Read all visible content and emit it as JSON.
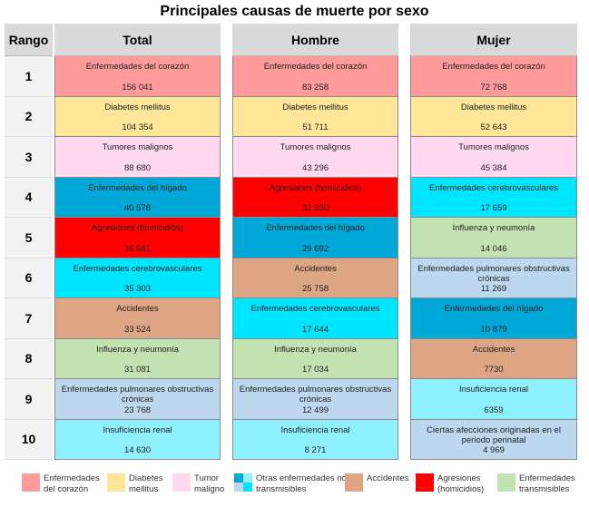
{
  "title": "Principales causas de muerte por sexo",
  "headers": {
    "rank": "Rango",
    "total": "Total",
    "male": "Hombre",
    "female": "Mujer"
  },
  "colors": {
    "corazon": "#ff9b9b",
    "diabetes": "#ffe699",
    "tumor": "#ffd9f0",
    "higado": "#00a8d8",
    "cerebro": "#00e5ff",
    "epoc": "#bdd7ee",
    "renal": "#8ff0ff",
    "accidentes": "#dea584",
    "agresiones": "#ff0000",
    "transmisibles": "#c2e2b2"
  },
  "ranks": [
    "1",
    "2",
    "3",
    "4",
    "5",
    "6",
    "7",
    "8",
    "9",
    "10"
  ],
  "total": [
    {
      "cause": "Enfermedades del corazón",
      "value": "156 041",
      "type": "corazon"
    },
    {
      "cause": "Diabetes mellitus",
      "value": "104 354",
      "type": "diabetes"
    },
    {
      "cause": "Tumores malignos",
      "value": "88 680",
      "type": "tumor"
    },
    {
      "cause": "Enfermedades del hígado",
      "value": "40 578",
      "type": "higado"
    },
    {
      "cause": "Agresiones (homicidios)",
      "value": "36 661",
      "type": "agresiones"
    },
    {
      "cause": "Enfermedades cerebrovasculares",
      "value": "35 303",
      "type": "cerebro"
    },
    {
      "cause": "Accidentes",
      "value": "33 524",
      "type": "accidentes"
    },
    {
      "cause": "Influenza y neumonía",
      "value": "31 081",
      "type": "transmisibles"
    },
    {
      "cause": "Enfermedades pulmonares obstructivas crónicas",
      "value": "23 768",
      "type": "epoc"
    },
    {
      "cause": "Insuficiencia renal",
      "value": "14 630",
      "type": "renal"
    }
  ],
  "male": [
    {
      "cause": "Enfermedades del corazón",
      "value": "83 258",
      "type": "corazon"
    },
    {
      "cause": "Diabetes mellitus",
      "value": "51 711",
      "type": "diabetes"
    },
    {
      "cause": "Tumores malignos",
      "value": "43 296",
      "type": "tumor"
    },
    {
      "cause": "Agresiones (homicidios)",
      "value": "32 530",
      "type": "agresiones"
    },
    {
      "cause": "Enfermedades del hígado",
      "value": "29 692",
      "type": "higado"
    },
    {
      "cause": "Accidentes",
      "value": "25 758",
      "type": "accidentes"
    },
    {
      "cause": "Enfermedades cerebrovasculares",
      "value": "17 644",
      "type": "cerebro"
    },
    {
      "cause": "Influenza y neumonía",
      "value": "17 034",
      "type": "transmisibles"
    },
    {
      "cause": "Enfermedades pulmonares obstructivas crónicas",
      "value": "12 499",
      "type": "epoc"
    },
    {
      "cause": "Insuficiencia renal",
      "value": "8 271",
      "type": "renal"
    }
  ],
  "female": [
    {
      "cause": "Enfermedades del corazón",
      "value": "72 768",
      "type": "corazon"
    },
    {
      "cause": "Diabetes mellitus",
      "value": "52 643",
      "type": "diabetes"
    },
    {
      "cause": "Tumores malignos",
      "value": "45 384",
      "type": "tumor"
    },
    {
      "cause": "Enfermedades cerebrovasculares",
      "value": "17 659",
      "type": "cerebro"
    },
    {
      "cause": "Influenza y neumonía",
      "value": "14 046",
      "type": "transmisibles"
    },
    {
      "cause": "Enfermedades pulmonares obstructivas crónicas",
      "value": "11 269",
      "type": "epoc"
    },
    {
      "cause": "Enfermedades del hígado",
      "value": "10 879",
      "type": "higado"
    },
    {
      "cause": "Accidentes",
      "value": "7730",
      "type": "accidentes"
    },
    {
      "cause": "Insuficiencia renal",
      "value": "6359",
      "type": "renal"
    },
    {
      "cause": "Ciertas afecciones originadas en el periodo perinatal",
      "value": "4 969",
      "type": "epoc"
    }
  ],
  "legend": [
    {
      "label": "Enfermedades del corazón",
      "type": "corazon"
    },
    {
      "label": "Diabetes mellitus",
      "type": "diabetes"
    },
    {
      "label": "Tumor maligno",
      "type": "tumor"
    },
    {
      "label": "Otras enfermedades no transmisibles",
      "type": "otras"
    },
    {
      "label": "Accidentes",
      "type": "accidentes"
    },
    {
      "label": "Agresiones (homicidios)",
      "type": "agresiones"
    },
    {
      "label": "Enfermedades transmisibles",
      "type": "transmisibles"
    }
  ]
}
